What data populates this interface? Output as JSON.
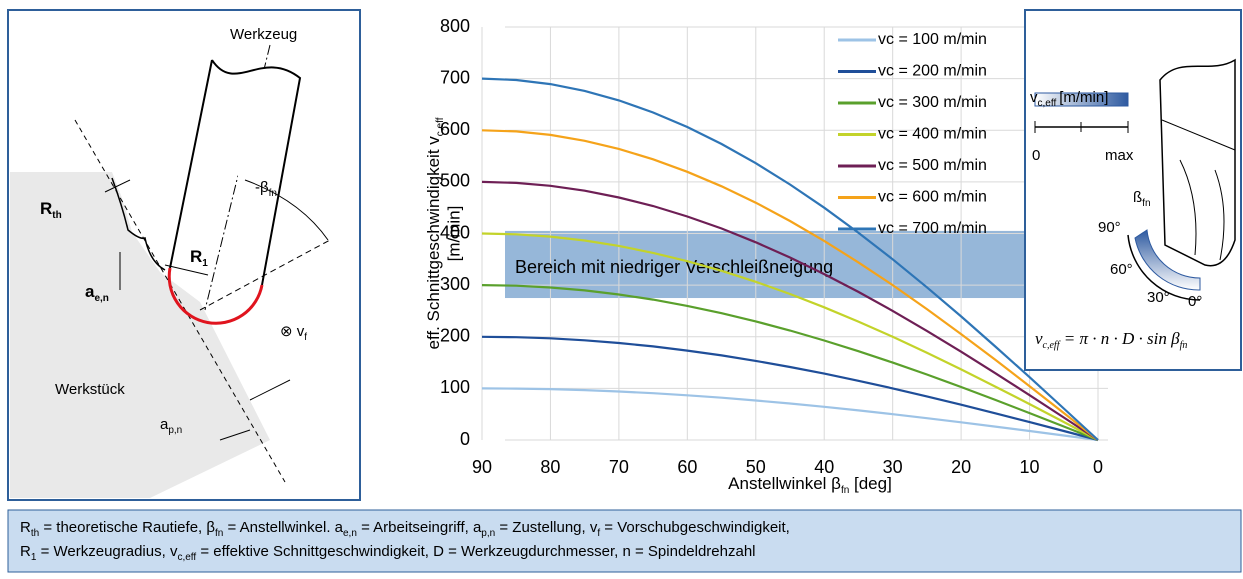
{
  "chart_data": {
    "type": "line",
    "y_label": [
      "eff. Schnittgeschwindigkeit v",
      "c,eff"
    ],
    "y_label_unit": "[m/min]",
    "x_label": [
      "Anstellwinkel β",
      "fn",
      " [deg]"
    ],
    "x": [
      90,
      85,
      80,
      75,
      70,
      65,
      60,
      55,
      50,
      45,
      40,
      35,
      30,
      25,
      20,
      15,
      10,
      5,
      0
    ],
    "series": [
      {
        "name": "vc = 100 m/min",
        "color": "#9dc3e6",
        "values": [
          100,
          99.6,
          98.5,
          96.6,
          94,
          90.6,
          86.6,
          81.9,
          76.6,
          70.7,
          64.3,
          57.4,
          50,
          42.3,
          34.2,
          25.9,
          17.4,
          8.7,
          0
        ]
      },
      {
        "name": "vc = 200 m/min",
        "color": "#1f4e99",
        "values": [
          200,
          199.2,
          197,
          193.2,
          187.9,
          181.3,
          173.2,
          163.8,
          153.2,
          141.4,
          128.6,
          114.7,
          100,
          84.5,
          68.4,
          51.8,
          34.7,
          17.4,
          0
        ]
      },
      {
        "name": "vc = 300 m/min",
        "color": "#5aa02c",
        "values": [
          300,
          298.9,
          295.4,
          289.8,
          281.9,
          271.9,
          259.8,
          245.7,
          229.8,
          212.1,
          192.8,
          172.1,
          150,
          126.8,
          102.6,
          77.6,
          52.1,
          26.1,
          0
        ]
      },
      {
        "name": "vc = 400 m/min",
        "color": "#c3d32a",
        "values": [
          400,
          398.5,
          393.9,
          386.4,
          375.9,
          362.5,
          346.4,
          327.7,
          306.4,
          282.8,
          257.1,
          229.4,
          200,
          169,
          136.8,
          103.5,
          69.5,
          34.9,
          0
        ]
      },
      {
        "name": "vc = 500 m/min",
        "color": "#6e1f55",
        "values": [
          500,
          498.1,
          492.4,
          483,
          469.8,
          453.2,
          433,
          409.6,
          383,
          353.6,
          321.4,
          286.8,
          250,
          211.3,
          171,
          129.4,
          86.8,
          43.6,
          0
        ]
      },
      {
        "name": "vc = 600 m/min",
        "color": "#f5a31a",
        "values": [
          600,
          597.7,
          590.9,
          579.6,
          563.8,
          543.8,
          519.6,
          491.5,
          459.6,
          424.3,
          385.7,
          344.1,
          300,
          253.6,
          205.2,
          155.3,
          104.2,
          52.3,
          0
        ]
      },
      {
        "name": "vc = 700 m/min",
        "color": "#2e75b6",
        "values": [
          700,
          697.3,
          689.4,
          676.2,
          657.8,
          634.4,
          606.2,
          573.4,
          536.2,
          495,
          450,
          401.5,
          350,
          295.8,
          239.4,
          181.2,
          121.6,
          61,
          0
        ]
      }
    ],
    "band": {
      "label": "Bereich mit niedriger Verschleißneigung",
      "range": [
        275,
        405
      ],
      "color": "#2e6fb4"
    },
    "xlim": [
      90,
      0
    ],
    "xticks": [
      90,
      80,
      70,
      60,
      50,
      40,
      30,
      20,
      10,
      0
    ],
    "ylim": [
      0,
      800
    ],
    "yticks": [
      0,
      100,
      200,
      300,
      400,
      500,
      600,
      700,
      800
    ],
    "grid": true,
    "legend": "upper right"
  },
  "diagram": {
    "tool": "Werkzeug",
    "r_th": [
      "R",
      "th"
    ],
    "r_1": [
      "R",
      "1"
    ],
    "beta": [
      "-β",
      "fn"
    ],
    "a_e": [
      "a",
      "e,n"
    ],
    "v_f": [
      "⊗  v",
      "f"
    ],
    "workpiece": "Werkstück",
    "a_p": [
      "a",
      "p,n"
    ]
  },
  "inset": {
    "scale_title": [
      "v",
      "c,eff"
    ],
    "scale_unit": "[m/min]",
    "scale_min": "0",
    "scale_max": "max",
    "angle_title": [
      "ß",
      "fn"
    ],
    "angles": [
      "90°",
      "60°",
      "30°",
      "0°"
    ],
    "formula": [
      "v",
      "c,eff",
      " = π · n · D · sin β",
      "fn"
    ]
  },
  "footer": {
    "lines": [
      [
        "R",
        "th",
        " = theoretische Rautiefe, β",
        "fn",
        " = Anstellwinkel. a",
        "e,n",
        " = Arbeitseingriff, a",
        "p,n",
        " = Zustellung, v",
        "f",
        " = Vorschubgeschwindigkeit,"
      ],
      [
        "R",
        "1",
        " = Werkzeugradius, v",
        "c,eff",
        " = effektive Schnittgeschwindigkeit, D = Werkzeugdurchmesser, n = Spindeldrehzahl"
      ]
    ]
  }
}
